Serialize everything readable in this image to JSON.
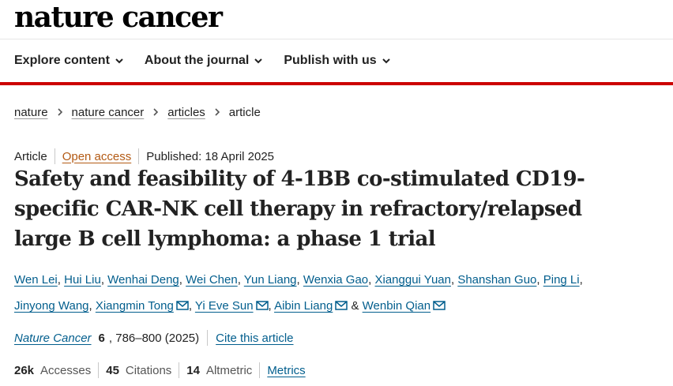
{
  "site": {
    "logo": "nature cancer"
  },
  "nav": {
    "items": [
      {
        "label": "Explore content"
      },
      {
        "label": "About the journal"
      },
      {
        "label": "Publish with us"
      }
    ]
  },
  "breadcrumb": {
    "items": [
      "nature",
      "nature cancer",
      "articles"
    ],
    "current": "article"
  },
  "article": {
    "type": "Article",
    "access": "Open access",
    "published": "Published: 18 April 2025",
    "title": "Safety and feasibility of 4-1BB co-stimulated CD19-specific CAR-NK cell therapy in refractory/relapsed large B cell lymphoma: a phase 1 trial",
    "authors": [
      "Wen Lei",
      "Hui Liu",
      "Wenhai Deng",
      "Wei Chen",
      "Yun Liang",
      "Wenxia Gao",
      "Xianggui Yuan",
      "Shanshan Guo",
      "Ping Li",
      "Jinyong Wang",
      "Xiangmin Tong",
      "Yi Eve Sun",
      "Aibin Liang",
      "Wenbin Qian"
    ],
    "author_separator": ",",
    "author_and": "&",
    "journal": "Nature Cancer",
    "volume": "6",
    "pages": ", 786–800 (2025)",
    "cite_label": "Cite this article"
  },
  "metrics": {
    "accesses_count": "26k",
    "accesses_label": "Accesses",
    "citations_count": "45",
    "citations_label": "Citations",
    "altmetric_count": "14",
    "altmetric_label": "Altmetric",
    "metrics_link": "Metrics"
  },
  "colors": {
    "accent_red": "#cc0000",
    "link_blue": "#025e8d",
    "open_access_orange": "#b35a14"
  }
}
